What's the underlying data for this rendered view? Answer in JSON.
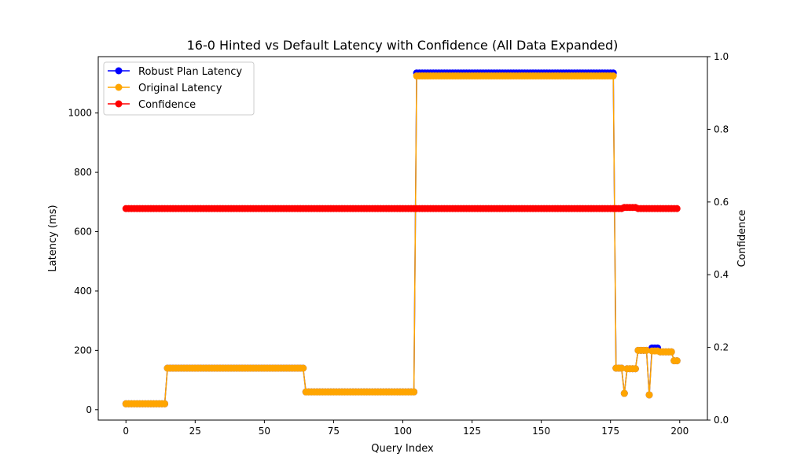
{
  "chart_data": {
    "type": "line",
    "title": "16-0 Hinted vs Default Latency with Confidence (All Data Expanded)",
    "xlabel": "Query Index",
    "ylabel": "Latency (ms)",
    "y2label": "Confidence",
    "xlim": [
      -10,
      210
    ],
    "ylim": [
      -35,
      1190
    ],
    "y2lim": [
      0.0,
      1.0
    ],
    "xticks": [
      0,
      25,
      50,
      75,
      100,
      125,
      150,
      175,
      200
    ],
    "yticks": [
      0,
      200,
      400,
      600,
      800,
      1000
    ],
    "y2ticks": [
      0.0,
      0.2,
      0.4,
      0.6,
      0.8,
      1.0
    ],
    "legend_position": "top-left",
    "series": [
      {
        "name": "Robust Plan Latency",
        "color": "#0000ff",
        "axis": "left",
        "segments": [
          {
            "from": 0,
            "to": 14,
            "value": 20
          },
          {
            "from": 15,
            "to": 64,
            "value": 140
          },
          {
            "from": 65,
            "to": 104,
            "value": 60
          },
          {
            "from": 105,
            "to": 176,
            "value": 1135
          },
          {
            "from": 177,
            "to": 179,
            "value": 140
          },
          {
            "from": 180,
            "to": 180,
            "value": 55
          },
          {
            "from": 181,
            "to": 184,
            "value": 138
          },
          {
            "from": 185,
            "to": 188,
            "value": 200
          },
          {
            "from": 189,
            "to": 189,
            "value": 50
          },
          {
            "from": 190,
            "to": 192,
            "value": 208
          },
          {
            "from": 193,
            "to": 197,
            "value": 195
          },
          {
            "from": 198,
            "to": 199,
            "value": 165
          }
        ]
      },
      {
        "name": "Original Latency",
        "color": "#ffa500",
        "axis": "left",
        "segments": [
          {
            "from": 0,
            "to": 14,
            "value": 20
          },
          {
            "from": 15,
            "to": 64,
            "value": 140
          },
          {
            "from": 65,
            "to": 104,
            "value": 60
          },
          {
            "from": 105,
            "to": 176,
            "value": 1125
          },
          {
            "from": 177,
            "to": 179,
            "value": 140
          },
          {
            "from": 180,
            "to": 180,
            "value": 55
          },
          {
            "from": 181,
            "to": 184,
            "value": 138
          },
          {
            "from": 185,
            "to": 188,
            "value": 200
          },
          {
            "from": 189,
            "to": 189,
            "value": 50
          },
          {
            "from": 190,
            "to": 192,
            "value": 198
          },
          {
            "from": 193,
            "to": 197,
            "value": 195
          },
          {
            "from": 198,
            "to": 199,
            "value": 165
          }
        ]
      },
      {
        "name": "Confidence",
        "color": "#ff0000",
        "axis": "right",
        "segments": [
          {
            "from": 0,
            "to": 179,
            "value": 0.582
          },
          {
            "from": 180,
            "to": 184,
            "value": 0.585
          },
          {
            "from": 185,
            "to": 199,
            "value": 0.582
          }
        ]
      }
    ]
  }
}
